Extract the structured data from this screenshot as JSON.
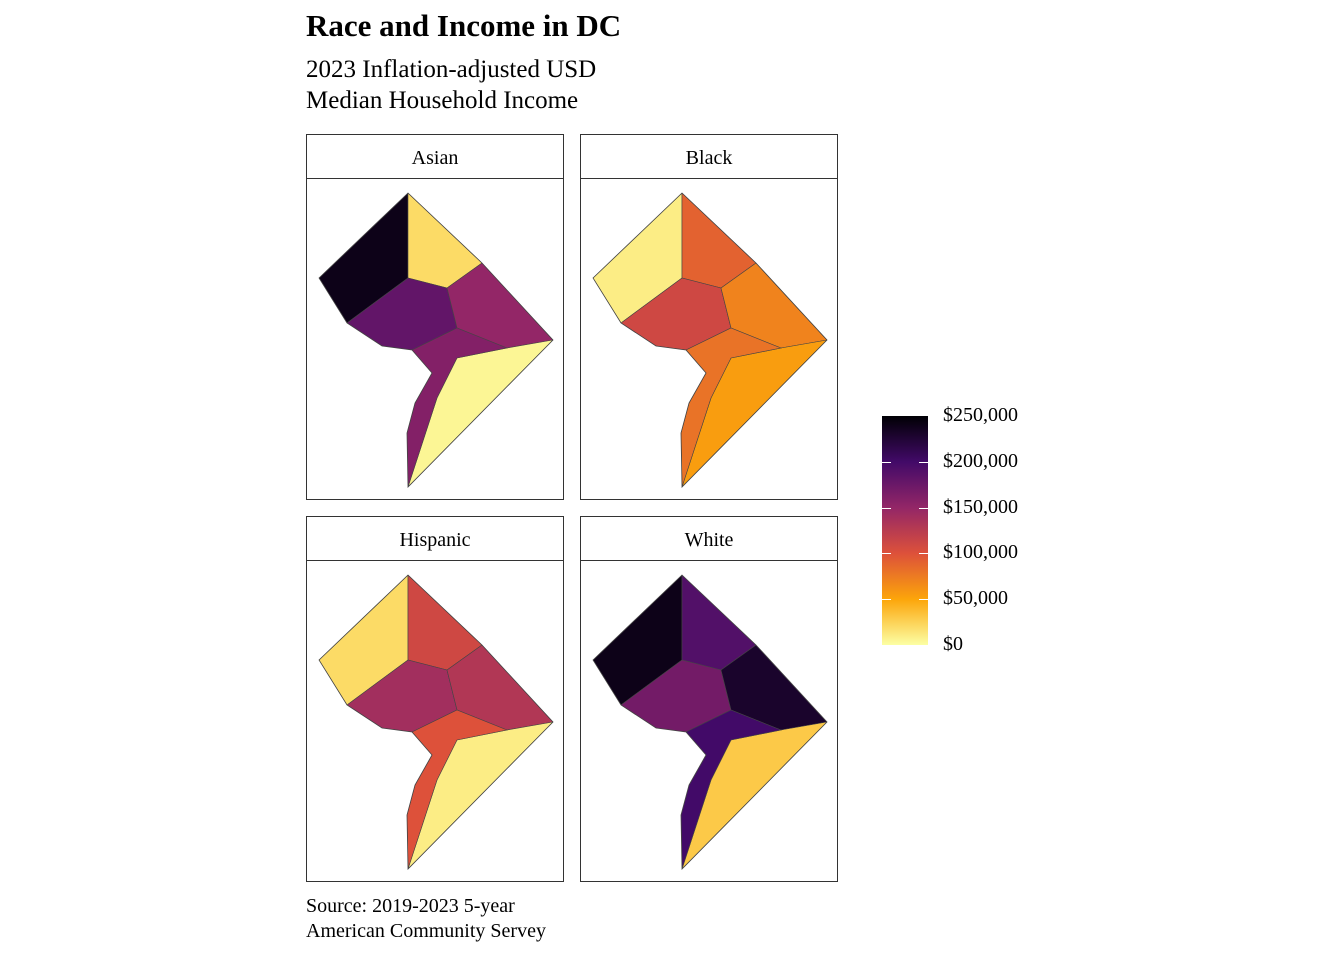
{
  "chart_data": {
    "type": "choropleth",
    "title": "Race and Income in DC",
    "subtitle_lines": [
      "2023 Inflation-adjusted USD",
      "Median Household Income"
    ],
    "caption_lines": [
      "Source: 2019-2023 5-year",
      "American Community Servey"
    ],
    "legend": {
      "ticks": [
        250000,
        200000,
        150000,
        100000,
        50000,
        0
      ],
      "tick_labels": [
        "$250,000",
        "$200,000",
        "$150,000",
        "$100,000",
        "$50,000",
        "$0"
      ],
      "range": [
        0,
        250000
      ],
      "palette": [
        "#fcffa4",
        "#fca50a",
        "#dd513a",
        "#932667",
        "#420a68",
        "#000004"
      ],
      "placement": "right"
    },
    "regions": [
      "northwest",
      "north",
      "central",
      "northeast",
      "east-of-river",
      "southwest"
    ],
    "facets": [
      {
        "label": "Asian",
        "values": [
          240000,
          20000,
          180000,
          150000,
          5000,
          160000
        ]
      },
      {
        "label": "Black",
        "values": [
          10000,
          90000,
          110000,
          70000,
          55000,
          80000
        ]
      },
      {
        "label": "Hispanic",
        "values": [
          20000,
          110000,
          140000,
          130000,
          10000,
          100000
        ]
      },
      {
        "label": "White",
        "values": [
          240000,
          190000,
          170000,
          230000,
          30000,
          200000
        ]
      }
    ]
  }
}
